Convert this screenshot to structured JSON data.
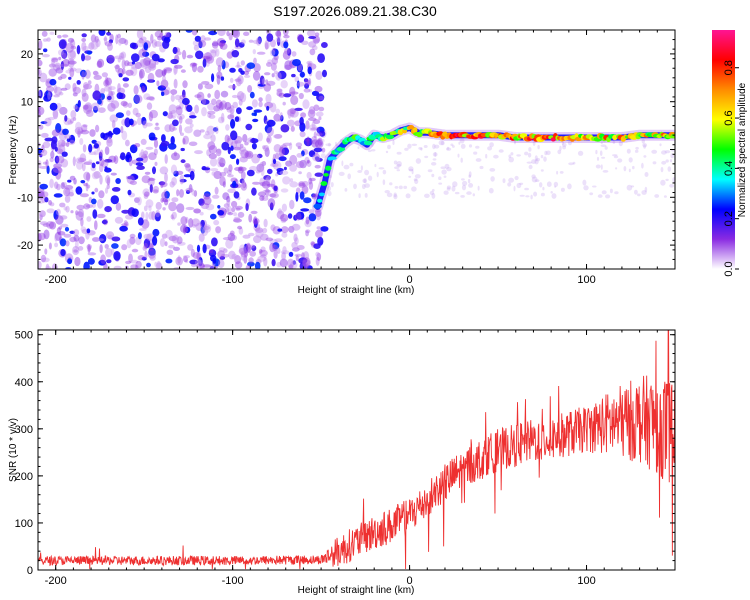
{
  "title": "S197.2026.089.21.38.C30",
  "colors": {
    "snr_line": "#ee3030",
    "axes": "#000000",
    "background": "#ffffff"
  },
  "chart_data": [
    {
      "type": "heatmap",
      "name": "spectrogram",
      "xlabel": "Height of straight line (km)",
      "ylabel": "Frequency (Hz)",
      "xlim": [
        -210,
        150
      ],
      "ylim": [
        -25,
        25
      ],
      "xticks": [
        -200,
        -100,
        0,
        100
      ],
      "yticks": [
        -20,
        -10,
        0,
        10,
        20
      ],
      "colorbar": {
        "label": "Normalized spectral amplitude",
        "range": [
          0.0,
          0.95
        ],
        "ticks": [
          0.0,
          0.2,
          0.4,
          0.6,
          0.8
        ],
        "tick_labels": [
          "0.0",
          "0.2",
          "0.4",
          "0.6",
          "0.8"
        ],
        "colormap": [
          "#ffffff",
          "#8a2be2",
          "#0000ff",
          "#00ffff",
          "#00ff00",
          "#ffff00",
          "#ff8c00",
          "#ff0000",
          "#ff1493"
        ]
      },
      "noise_region_x": [
        -210,
        -50
      ],
      "ridge": {
        "x": [
          -52,
          -48,
          -45,
          -40,
          -36,
          -32,
          -28,
          -24,
          -20,
          -15,
          -10,
          -5,
          0,
          5,
          10,
          20,
          30,
          40,
          50,
          60,
          70,
          80,
          90,
          100,
          110,
          120,
          130,
          140,
          150
        ],
        "freq": [
          -12,
          -7,
          -2,
          0,
          1.5,
          2.5,
          2,
          1,
          3,
          2.5,
          3,
          4,
          4.5,
          3.5,
          3.5,
          3,
          3,
          3,
          3,
          2.5,
          2.5,
          2.5,
          2.5,
          2.5,
          2.5,
          2.5,
          3,
          3,
          3
        ],
        "amplitude": [
          0.5,
          0.45,
          0.5,
          0.4,
          0.45,
          0.5,
          0.55,
          0.5,
          0.6,
          0.6,
          0.65,
          0.65,
          0.7,
          0.7,
          0.75,
          0.85,
          0.9,
          0.85,
          0.85,
          0.8,
          0.85,
          0.9,
          0.8,
          0.75,
          0.8,
          0.85,
          0.8,
          0.75,
          0.75
        ]
      }
    },
    {
      "type": "line",
      "name": "snr",
      "xlabel": "Height of straight line (km)",
      "ylabel": "SNR (10 * v/v)",
      "xlim": [
        -210,
        150
      ],
      "ylim": [
        0,
        510
      ],
      "xticks": [
        -200,
        -100,
        0,
        100
      ],
      "yticks": [
        0,
        100,
        200,
        300,
        400,
        500
      ],
      "trend": {
        "x": [
          -210,
          -150,
          -100,
          -50,
          -40,
          -30,
          -20,
          -10,
          0,
          10,
          20,
          30,
          40,
          50,
          60,
          70,
          80,
          90,
          100,
          110,
          120,
          130,
          140,
          150
        ],
        "y": [
          20,
          20,
          20,
          22,
          40,
          60,
          80,
          95,
          115,
          150,
          185,
          215,
          235,
          255,
          265,
          275,
          280,
          290,
          300,
          310,
          315,
          320,
          310,
          290
        ]
      },
      "noise": {
        "x": [
          -210,
          -50,
          -40,
          0,
          100,
          120,
          150
        ],
        "amplitude": [
          10,
          10,
          35,
          40,
          50,
          80,
          120
        ]
      }
    }
  ]
}
